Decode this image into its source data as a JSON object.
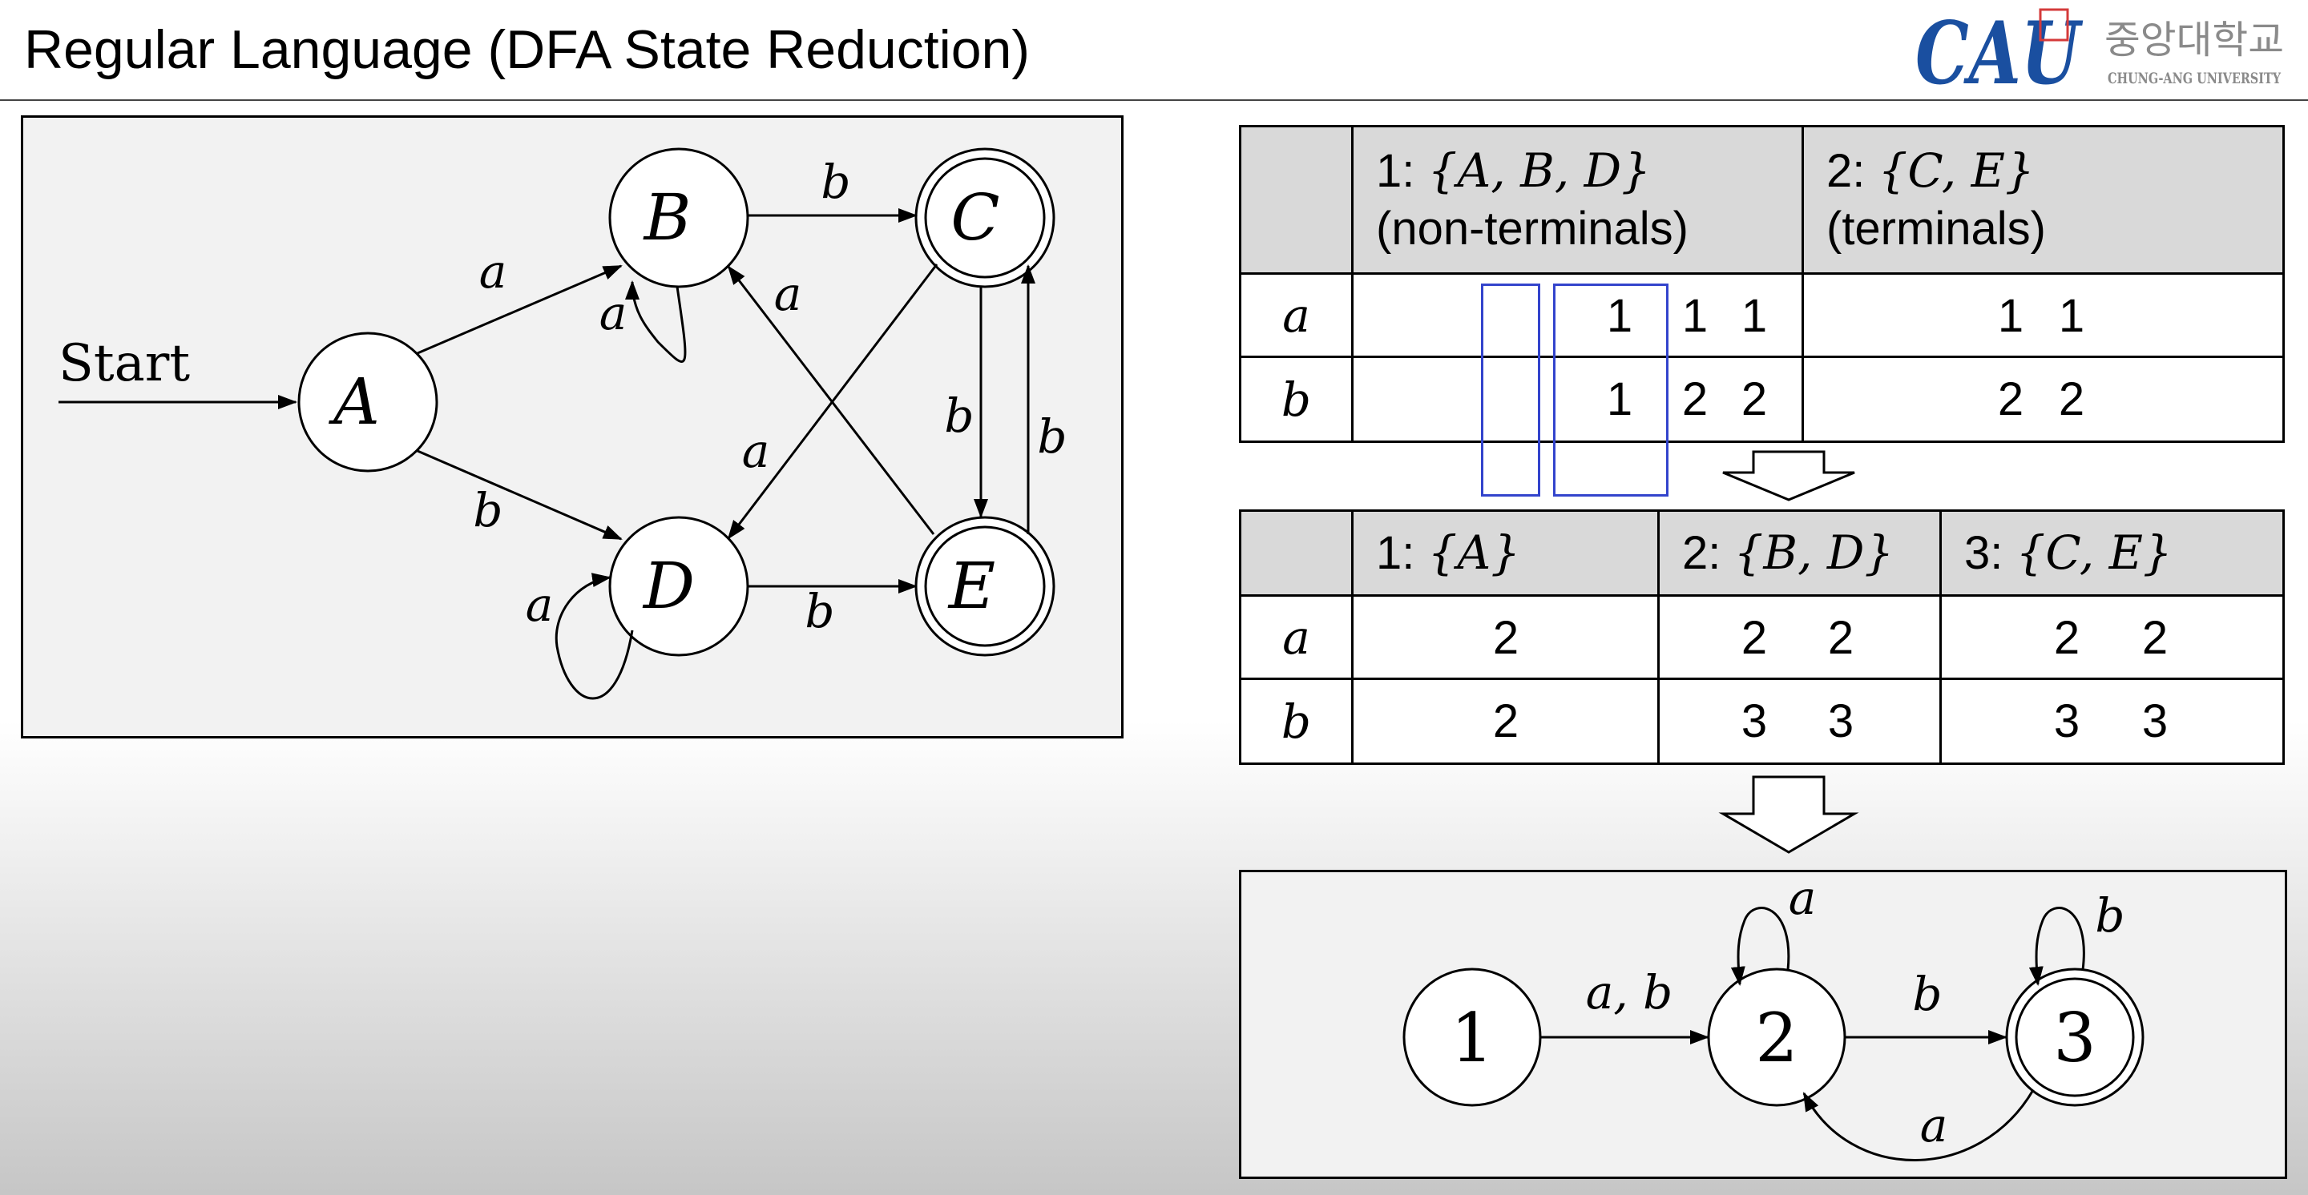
{
  "header": {
    "title": "Regular Language (DFA State Reduction)",
    "logo_text": "CAU",
    "university_korean": "중앙대학교",
    "university_english": "CHUNG-ANG UNIVERSITY"
  },
  "original_dfa": {
    "start_label": "Start",
    "states": [
      "A",
      "B",
      "C",
      "D",
      "E"
    ],
    "transitions": {
      "a_to_b": "a",
      "a_to_d": "b",
      "b_loop": "a",
      "b_to_c": "b",
      "c_to_e": "b",
      "e_to_c": "b",
      "c_to_d": "a",
      "e_to_b": "a",
      "d_loop": "a",
      "d_to_e": "b"
    }
  },
  "table1": {
    "headers": [
      {
        "num": "1: ",
        "set": "{A, B, D}",
        "desc": "(non-terminals)"
      },
      {
        "num": "2: ",
        "set": "{C, E}",
        "desc": "(terminals)"
      }
    ],
    "rows": [
      {
        "label": "a",
        "group1": [
          "1",
          "1",
          "1"
        ],
        "group2": [
          "1",
          "1"
        ]
      },
      {
        "label": "b",
        "group1": [
          "1",
          "2",
          "2"
        ],
        "group2": [
          "2",
          "2"
        ]
      }
    ]
  },
  "table2": {
    "headers": [
      {
        "num": "1: ",
        "set": "{A}"
      },
      {
        "num": "2: ",
        "set": "{B, D}"
      },
      {
        "num": "3: ",
        "set": "{C, E}"
      }
    ],
    "rows": [
      {
        "label": "a",
        "cells": [
          [
            "2"
          ],
          [
            "2",
            "2"
          ],
          [
            "2",
            "2"
          ]
        ]
      },
      {
        "label": "b",
        "cells": [
          [
            "2"
          ],
          [
            "3",
            "3"
          ],
          [
            "3",
            "3"
          ]
        ]
      }
    ]
  },
  "reduced_dfa": {
    "states": [
      "1",
      "2",
      "3"
    ],
    "transitions": {
      "one_to_two": "a, b",
      "two_loop": "a",
      "two_to_three": "b",
      "three_loop": "b",
      "three_to_two": "a"
    }
  }
}
